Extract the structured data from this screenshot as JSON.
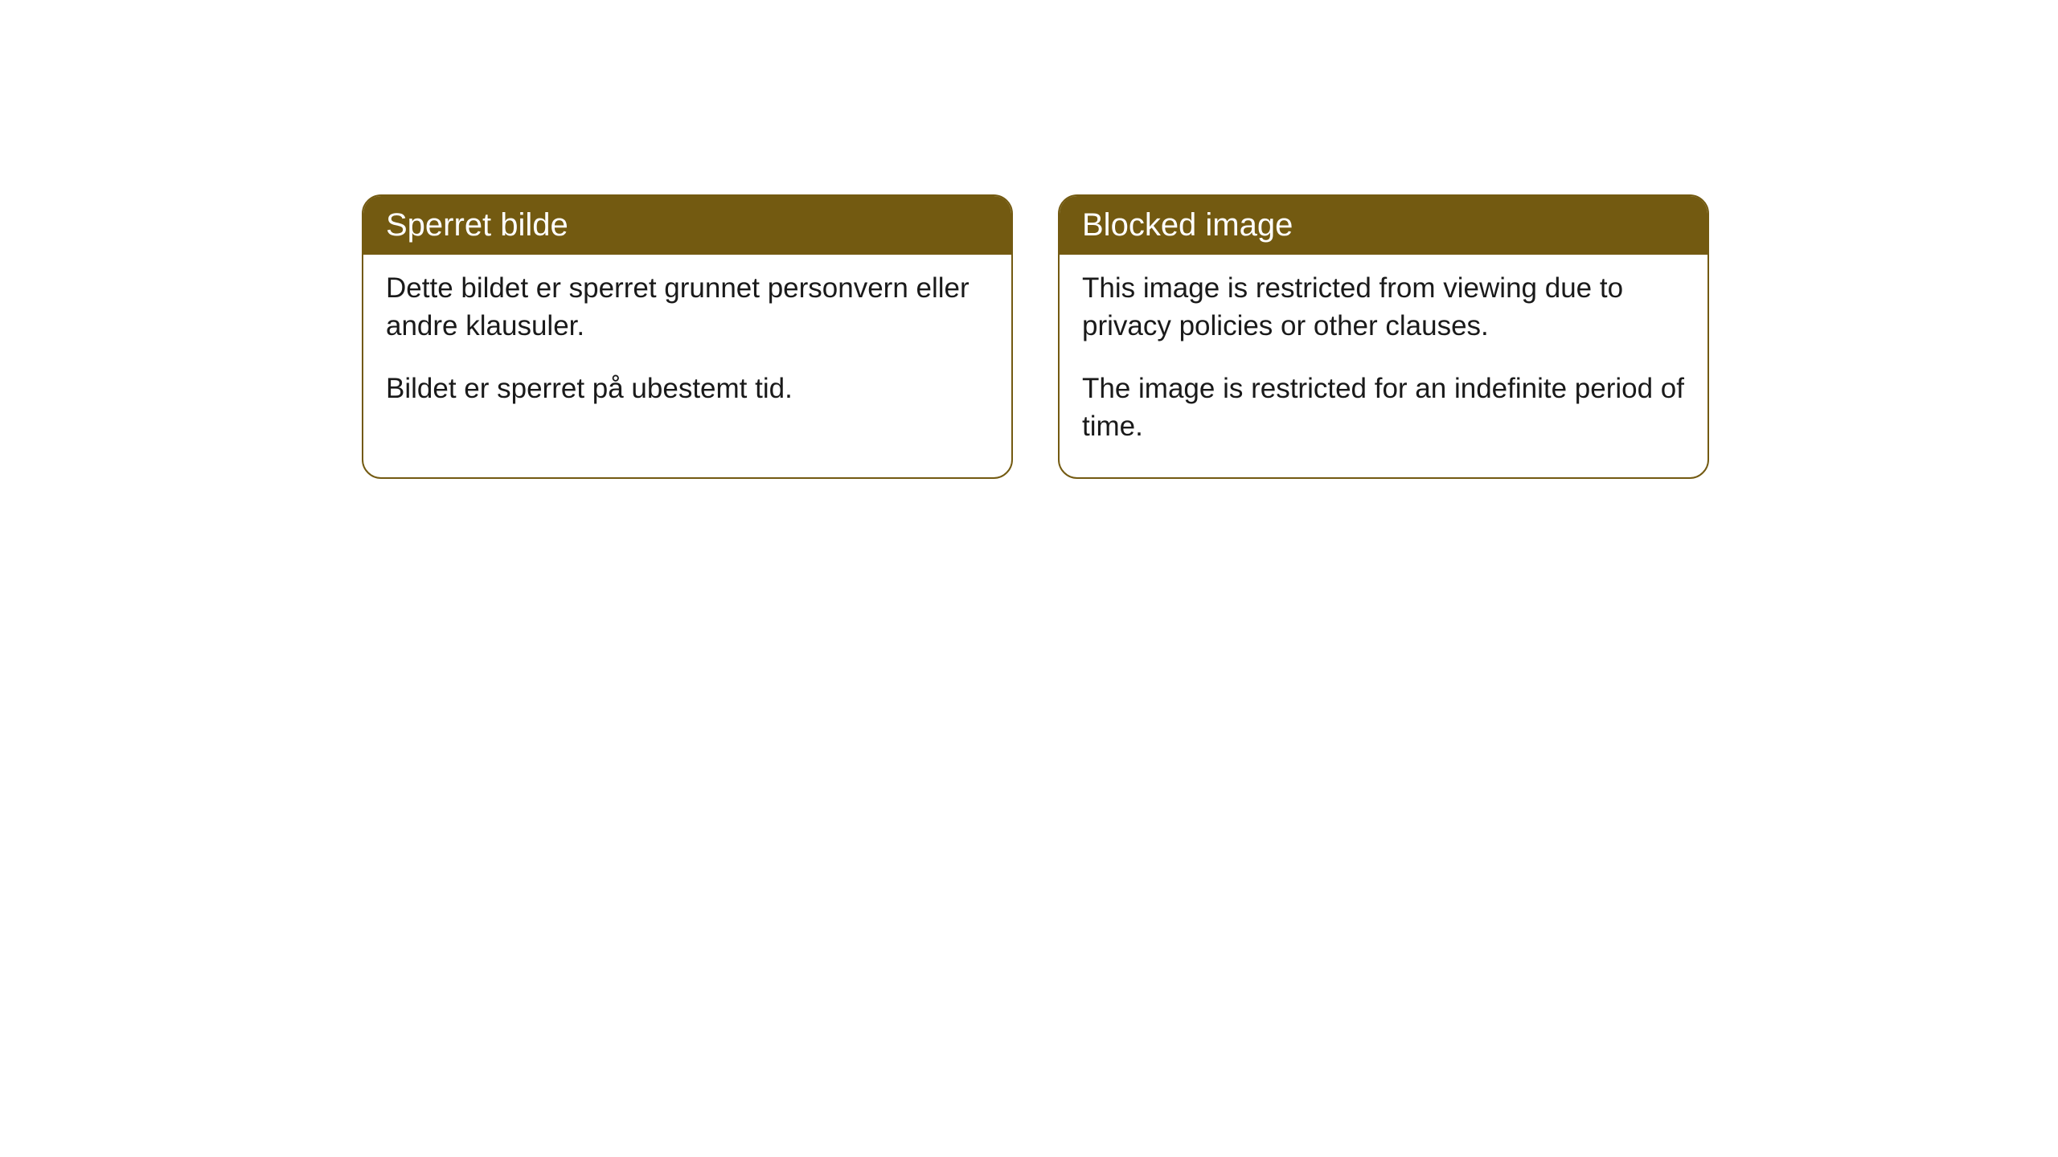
{
  "cards": [
    {
      "title": "Sperret bilde",
      "paragraph1": "Dette bildet er sperret grunnet personvern eller andre klausuler.",
      "paragraph2": "Bildet er sperret på ubestemt tid."
    },
    {
      "title": "Blocked image",
      "paragraph1": "This image is restricted from viewing due to privacy policies or other clauses.",
      "paragraph2": "The image is restricted for an indefinite period of time."
    }
  ],
  "styling": {
    "header_background_color": "#735a11",
    "header_text_color": "#ffffff",
    "border_color": "#735a11",
    "body_background_color": "#ffffff",
    "body_text_color": "#1a1a1a",
    "border_radius": 24,
    "header_fontsize": 40,
    "body_fontsize": 35
  }
}
